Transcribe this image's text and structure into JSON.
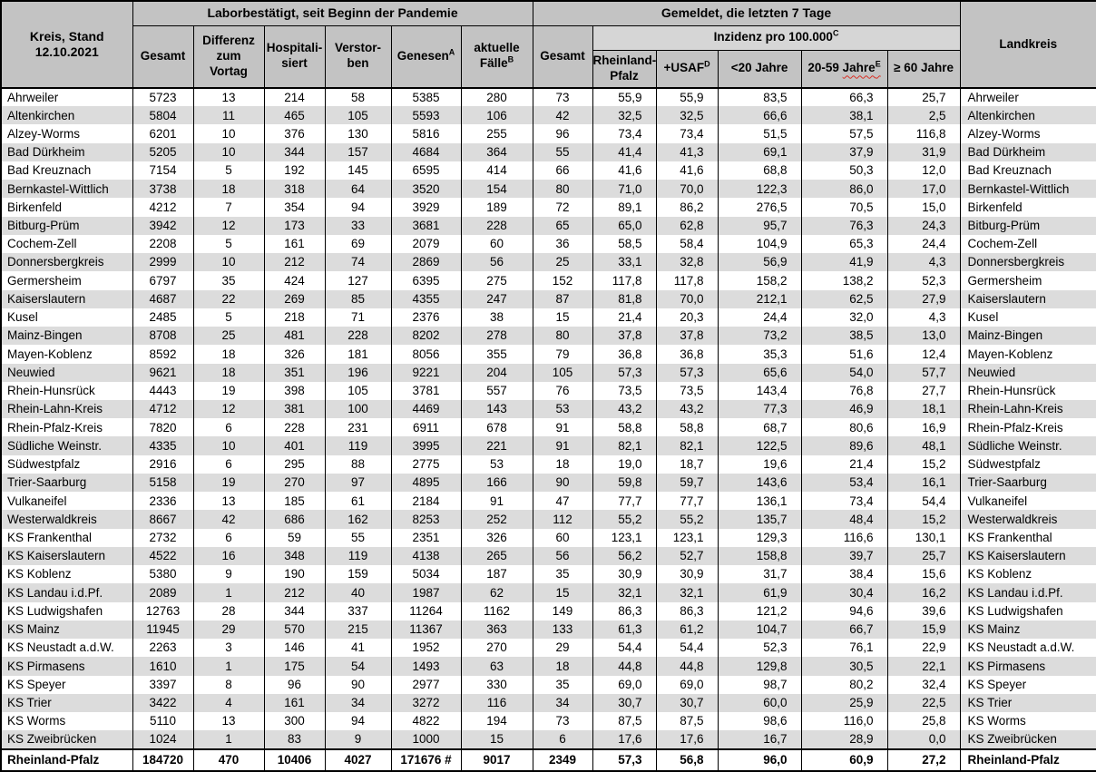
{
  "colors": {
    "header_bg": "#c3c3c3",
    "inzidenz_band_bg": "#d6d6d6",
    "row_alt_bg": "#dcdcdc",
    "border": "#000000",
    "spellcheck_squiggle": "#d93025"
  },
  "header": {
    "kreis_stand": "Kreis, Stand\n12.10.2021",
    "group_labor": "Laborbestätigt, seit Beginn der Pandemie",
    "group_gemeldet": "Gemeldet, die letzten 7 Tage",
    "landkreis": "Landkreis",
    "labor_cols": [
      {
        "label": "Gesamt",
        "sup": ""
      },
      {
        "label": "Differenz\nzum\nVortag",
        "sup": ""
      },
      {
        "label": "Hospitali-\nsiert",
        "sup": ""
      },
      {
        "label": "Verstor-\nben",
        "sup": ""
      },
      {
        "label": "Genesen",
        "sup": "A"
      },
      {
        "label": "aktuelle\nFälle",
        "sup": "B"
      }
    ],
    "gesamt_7tage": "Gesamt",
    "inzidenz_label": "Inzidenz pro 100.000",
    "inzidenz_sup": "C",
    "inzidenz_cols": [
      {
        "label": "Rheinland-\nPfalz",
        "wavy": "",
        "sup": ""
      },
      {
        "label": "+USAF",
        "wavy": "",
        "sup": "D"
      },
      {
        "label": "<20 Jahre",
        "wavy": "",
        "sup": ""
      },
      {
        "label": "20-59 ",
        "wavy": "Jahre",
        "sup": "E"
      },
      {
        "label": "≥ 60 Jahre",
        "wavy": "",
        "sup": ""
      }
    ]
  },
  "rows": [
    {
      "name": "Ahrweiler",
      "values": [
        "5723",
        "13",
        "214",
        "58",
        "5385",
        "280",
        "73",
        "55,9",
        "55,9",
        "83,5",
        "66,3",
        "25,7"
      ]
    },
    {
      "name": "Altenkirchen",
      "values": [
        "5804",
        "11",
        "465",
        "105",
        "5593",
        "106",
        "42",
        "32,5",
        "32,5",
        "66,6",
        "38,1",
        "2,5"
      ]
    },
    {
      "name": "Alzey-Worms",
      "values": [
        "6201",
        "10",
        "376",
        "130",
        "5816",
        "255",
        "96",
        "73,4",
        "73,4",
        "51,5",
        "57,5",
        "116,8"
      ]
    },
    {
      "name": "Bad Dürkheim",
      "values": [
        "5205",
        "10",
        "344",
        "157",
        "4684",
        "364",
        "55",
        "41,4",
        "41,3",
        "69,1",
        "37,9",
        "31,9"
      ]
    },
    {
      "name": "Bad Kreuznach",
      "values": [
        "7154",
        "5",
        "192",
        "145",
        "6595",
        "414",
        "66",
        "41,6",
        "41,6",
        "68,8",
        "50,3",
        "12,0"
      ]
    },
    {
      "name": "Bernkastel-Wittlich",
      "values": [
        "3738",
        "18",
        "318",
        "64",
        "3520",
        "154",
        "80",
        "71,0",
        "70,0",
        "122,3",
        "86,0",
        "17,0"
      ]
    },
    {
      "name": "Birkenfeld",
      "values": [
        "4212",
        "7",
        "354",
        "94",
        "3929",
        "189",
        "72",
        "89,1",
        "86,2",
        "276,5",
        "70,5",
        "15,0"
      ]
    },
    {
      "name": "Bitburg-Prüm",
      "values": [
        "3942",
        "12",
        "173",
        "33",
        "3681",
        "228",
        "65",
        "65,0",
        "62,8",
        "95,7",
        "76,3",
        "24,3"
      ]
    },
    {
      "name": "Cochem-Zell",
      "values": [
        "2208",
        "5",
        "161",
        "69",
        "2079",
        "60",
        "36",
        "58,5",
        "58,4",
        "104,9",
        "65,3",
        "24,4"
      ]
    },
    {
      "name": "Donnersbergkreis",
      "values": [
        "2999",
        "10",
        "212",
        "74",
        "2869",
        "56",
        "25",
        "33,1",
        "32,8",
        "56,9",
        "41,9",
        "4,3"
      ]
    },
    {
      "name": "Germersheim",
      "values": [
        "6797",
        "35",
        "424",
        "127",
        "6395",
        "275",
        "152",
        "117,8",
        "117,8",
        "158,2",
        "138,2",
        "52,3"
      ]
    },
    {
      "name": "Kaiserslautern",
      "values": [
        "4687",
        "22",
        "269",
        "85",
        "4355",
        "247",
        "87",
        "81,8",
        "70,0",
        "212,1",
        "62,5",
        "27,9"
      ]
    },
    {
      "name": "Kusel",
      "values": [
        "2485",
        "5",
        "218",
        "71",
        "2376",
        "38",
        "15",
        "21,4",
        "20,3",
        "24,4",
        "32,0",
        "4,3"
      ]
    },
    {
      "name": "Mainz-Bingen",
      "values": [
        "8708",
        "25",
        "481",
        "228",
        "8202",
        "278",
        "80",
        "37,8",
        "37,8",
        "73,2",
        "38,5",
        "13,0"
      ]
    },
    {
      "name": "Mayen-Koblenz",
      "values": [
        "8592",
        "18",
        "326",
        "181",
        "8056",
        "355",
        "79",
        "36,8",
        "36,8",
        "35,3",
        "51,6",
        "12,4"
      ]
    },
    {
      "name": "Neuwied",
      "values": [
        "9621",
        "18",
        "351",
        "196",
        "9221",
        "204",
        "105",
        "57,3",
        "57,3",
        "65,6",
        "54,0",
        "57,7"
      ]
    },
    {
      "name": "Rhein-Hunsrück",
      "values": [
        "4443",
        "19",
        "398",
        "105",
        "3781",
        "557",
        "76",
        "73,5",
        "73,5",
        "143,4",
        "76,8",
        "27,7"
      ]
    },
    {
      "name": "Rhein-Lahn-Kreis",
      "values": [
        "4712",
        "12",
        "381",
        "100",
        "4469",
        "143",
        "53",
        "43,2",
        "43,2",
        "77,3",
        "46,9",
        "18,1"
      ]
    },
    {
      "name": "Rhein-Pfalz-Kreis",
      "values": [
        "7820",
        "6",
        "228",
        "231",
        "6911",
        "678",
        "91",
        "58,8",
        "58,8",
        "68,7",
        "80,6",
        "16,9"
      ]
    },
    {
      "name": "Südliche Weinstr.",
      "values": [
        "4335",
        "10",
        "401",
        "119",
        "3995",
        "221",
        "91",
        "82,1",
        "82,1",
        "122,5",
        "89,6",
        "48,1"
      ]
    },
    {
      "name": "Südwestpfalz",
      "values": [
        "2916",
        "6",
        "295",
        "88",
        "2775",
        "53",
        "18",
        "19,0",
        "18,7",
        "19,6",
        "21,4",
        "15,2"
      ]
    },
    {
      "name": "Trier-Saarburg",
      "values": [
        "5158",
        "19",
        "270",
        "97",
        "4895",
        "166",
        "90",
        "59,8",
        "59,7",
        "143,6",
        "53,4",
        "16,1"
      ]
    },
    {
      "name": "Vulkaneifel",
      "values": [
        "2336",
        "13",
        "185",
        "61",
        "2184",
        "91",
        "47",
        "77,7",
        "77,7",
        "136,1",
        "73,4",
        "54,4"
      ]
    },
    {
      "name": "Westerwaldkreis",
      "values": [
        "8667",
        "42",
        "686",
        "162",
        "8253",
        "252",
        "112",
        "55,2",
        "55,2",
        "135,7",
        "48,4",
        "15,2"
      ]
    },
    {
      "name": "KS Frankenthal",
      "values": [
        "2732",
        "6",
        "59",
        "55",
        "2351",
        "326",
        "60",
        "123,1",
        "123,1",
        "129,3",
        "116,6",
        "130,1"
      ]
    },
    {
      "name": "KS Kaiserslautern",
      "values": [
        "4522",
        "16",
        "348",
        "119",
        "4138",
        "265",
        "56",
        "56,2",
        "52,7",
        "158,8",
        "39,7",
        "25,7"
      ]
    },
    {
      "name": "KS Koblenz",
      "values": [
        "5380",
        "9",
        "190",
        "159",
        "5034",
        "187",
        "35",
        "30,9",
        "30,9",
        "31,7",
        "38,4",
        "15,6"
      ]
    },
    {
      "name": "KS Landau i.d.Pf.",
      "values": [
        "2089",
        "1",
        "212",
        "40",
        "1987",
        "62",
        "15",
        "32,1",
        "32,1",
        "61,9",
        "30,4",
        "16,2"
      ]
    },
    {
      "name": "KS Ludwigshafen",
      "values": [
        "12763",
        "28",
        "344",
        "337",
        "11264",
        "1162",
        "149",
        "86,3",
        "86,3",
        "121,2",
        "94,6",
        "39,6"
      ]
    },
    {
      "name": "KS Mainz",
      "values": [
        "11945",
        "29",
        "570",
        "215",
        "11367",
        "363",
        "133",
        "61,3",
        "61,2",
        "104,7",
        "66,7",
        "15,9"
      ]
    },
    {
      "name": "KS Neustadt a.d.W.",
      "values": [
        "2263",
        "3",
        "146",
        "41",
        "1952",
        "270",
        "29",
        "54,4",
        "54,4",
        "52,3",
        "76,1",
        "22,9"
      ]
    },
    {
      "name": "KS Pirmasens",
      "values": [
        "1610",
        "1",
        "175",
        "54",
        "1493",
        "63",
        "18",
        "44,8",
        "44,8",
        "129,8",
        "30,5",
        "22,1"
      ]
    },
    {
      "name": "KS Speyer",
      "values": [
        "3397",
        "8",
        "96",
        "90",
        "2977",
        "330",
        "35",
        "69,0",
        "69,0",
        "98,7",
        "80,2",
        "32,4"
      ]
    },
    {
      "name": "KS Trier",
      "values": [
        "3422",
        "4",
        "161",
        "34",
        "3272",
        "116",
        "34",
        "30,7",
        "30,7",
        "60,0",
        "25,9",
        "22,5"
      ]
    },
    {
      "name": "KS Worms",
      "values": [
        "5110",
        "13",
        "300",
        "94",
        "4822",
        "194",
        "73",
        "87,5",
        "87,5",
        "98,6",
        "116,0",
        "25,8"
      ]
    },
    {
      "name": "KS Zweibrücken",
      "values": [
        "1024",
        "1",
        "83",
        "9",
        "1000",
        "15",
        "6",
        "17,6",
        "17,6",
        "16,7",
        "28,9",
        "0,0"
      ]
    }
  ],
  "total": {
    "name": "Rheinland-Pfalz",
    "values": [
      "184720",
      "470",
      "10406",
      "4027",
      "171676 #",
      "9017",
      "2349",
      "57,3",
      "56,8",
      "96,0",
      "60,9",
      "27,2"
    ]
  }
}
